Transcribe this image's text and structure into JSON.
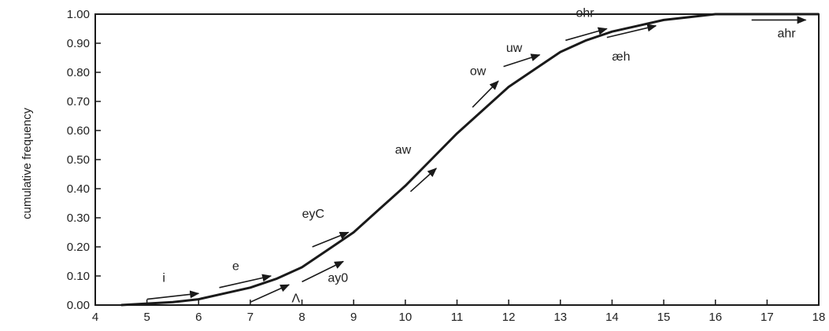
{
  "chart_data": {
    "type": "line",
    "title": "",
    "xlabel": "",
    "ylabel": "cumulative frequency",
    "xlim": [
      4,
      18
    ],
    "ylim": [
      0,
      1
    ],
    "xticks": [
      "4",
      "5",
      "6",
      "7",
      "8",
      "9",
      "10",
      "11",
      "12",
      "13",
      "14",
      "15",
      "16",
      "17",
      "18"
    ],
    "yticks": [
      "0.00",
      "0.10",
      "0.20",
      "0.30",
      "0.40",
      "0.50",
      "0.60",
      "0.70",
      "0.80",
      "0.90",
      "1.00"
    ],
    "grid": false,
    "legend": "none",
    "series": [
      {
        "x": [
          4.5,
          5,
          5.5,
          6,
          6.5,
          7,
          7.5,
          8,
          8.5,
          9,
          9.5,
          10,
          10.5,
          11,
          11.5,
          12,
          12.5,
          13,
          13.5,
          14,
          14.5,
          15,
          15.5,
          16,
          16.5,
          17,
          17.5,
          18
        ],
        "y": [
          0.0,
          0.005,
          0.01,
          0.02,
          0.04,
          0.06,
          0.09,
          0.13,
          0.19,
          0.25,
          0.33,
          0.41,
          0.5,
          0.59,
          0.67,
          0.75,
          0.81,
          0.87,
          0.91,
          0.94,
          0.96,
          0.98,
          0.99,
          1.0,
          1.0,
          1.0,
          1.0,
          1.0
        ]
      }
    ],
    "annotations": [
      {
        "label": "i",
        "arrow_from": [
          5.0,
          0.02
        ],
        "arrow_to": [
          6.0,
          0.04
        ],
        "label_at": [
          5.3,
          0.08
        ]
      },
      {
        "label": "e",
        "arrow_from": [
          6.4,
          0.06
        ],
        "arrow_to": [
          7.4,
          0.1
        ],
        "label_at": [
          6.65,
          0.12
        ]
      },
      {
        "label": "Λ",
        "arrow_from": [
          7.0,
          0.01
        ],
        "arrow_to": [
          7.75,
          0.07
        ],
        "label_at": [
          7.8,
          0.01
        ]
      },
      {
        "label": "ay0",
        "arrow_from": [
          8.0,
          0.08
        ],
        "arrow_to": [
          8.8,
          0.15
        ],
        "label_at": [
          8.5,
          0.08
        ]
      },
      {
        "label": "eyC",
        "arrow_from": [
          8.2,
          0.2
        ],
        "arrow_to": [
          8.9,
          0.25
        ],
        "label_at": [
          8.0,
          0.3
        ]
      },
      {
        "label": "aw",
        "arrow_from": [
          10.1,
          0.39
        ],
        "arrow_to": [
          10.6,
          0.47
        ],
        "label_at": [
          9.8,
          0.52
        ]
      },
      {
        "label": "ow",
        "arrow_from": [
          11.3,
          0.68
        ],
        "arrow_to": [
          11.8,
          0.77
        ],
        "label_at": [
          11.25,
          0.79
        ]
      },
      {
        "label": "uw",
        "arrow_from": [
          11.9,
          0.82
        ],
        "arrow_to": [
          12.6,
          0.86
        ],
        "label_at": [
          11.95,
          0.87
        ]
      },
      {
        "label": "ohr",
        "arrow_from": [
          13.1,
          0.91
        ],
        "arrow_to": [
          13.9,
          0.95
        ],
        "label_at": [
          13.3,
          0.99
        ]
      },
      {
        "label": "æh",
        "arrow_from": [
          13.9,
          0.92
        ],
        "arrow_to": [
          14.85,
          0.96
        ],
        "label_at": [
          14.0,
          0.84
        ]
      },
      {
        "label": "ahr",
        "arrow_from": [
          16.7,
          0.98
        ],
        "arrow_to": [
          17.75,
          0.98
        ],
        "label_at": [
          17.2,
          0.92
        ]
      }
    ]
  }
}
